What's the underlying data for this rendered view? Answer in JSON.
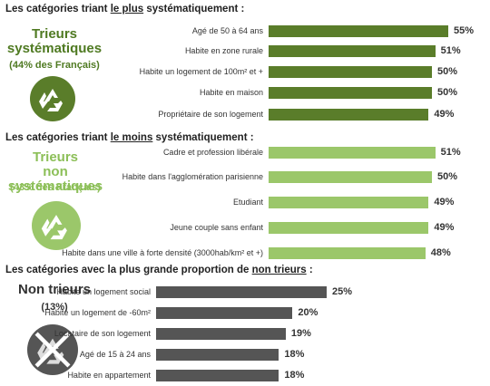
{
  "colors": {
    "dark_green": "#5a7d2a",
    "light_green": "#9bc76a",
    "dark_gray": "#555555",
    "text_dark_green": "#4f7a22",
    "text_light_green": "#8cbf58"
  },
  "sections": [
    {
      "title_prefix": "Les catégories triant ",
      "title_highlight": "le plus",
      "title_suffix": " systématiquement :",
      "group_name_line1": "Trieurs",
      "group_name_line2": "systématiques",
      "group_pct": "(44% des Français)",
      "icon": "recycle-icon",
      "color_key": "dark_green"
    },
    {
      "title_prefix": "Les catégories triant ",
      "title_highlight": "le moins",
      "title_suffix": " systématiquement :",
      "group_name_line1": "Trieurs",
      "group_name_line2": "non systématiques",
      "group_pct": "(43% des Français)",
      "icon": "recycle-icon",
      "color_key": "light_green"
    },
    {
      "title_prefix": "Les catégories avec la plus grande proportion de ",
      "title_highlight": "non trieurs",
      "title_suffix": " :",
      "group_name_line1": "Non trieurs",
      "group_name_line2": "",
      "group_pct": "(13%)",
      "icon": "crossed-recycle-icon",
      "color_key": "dark_gray"
    }
  ],
  "chart_data": [
    {
      "type": "bar",
      "orientation": "horizontal",
      "categories": [
        "Agé de 50 à 64 ans",
        "Habite en zone rurale",
        "Habite un logement de 100m² et +",
        "Habite en maison",
        "Propriétaire de son logement"
      ],
      "values": [
        55,
        51,
        50,
        50,
        49
      ],
      "value_labels": [
        "55%",
        "51%",
        "50%",
        "50%",
        "49%"
      ],
      "unit": "%"
    },
    {
      "type": "bar",
      "orientation": "horizontal",
      "categories": [
        "Cadre et profession libérale",
        "Habite dans l'agglomération parisienne",
        "Etudiant",
        "Jeune couple sans enfant",
        "Habite dans une ville à forte densité (3000hab/km² et +)"
      ],
      "values": [
        51,
        50,
        49,
        49,
        48
      ],
      "value_labels": [
        "51%",
        "50%",
        "49%",
        "49%",
        "48%"
      ],
      "unit": "%"
    },
    {
      "type": "bar",
      "orientation": "horizontal",
      "categories": [
        "Habite un logement social",
        "Habite un logement de -60m²",
        "Locataire de son logement",
        "Agé de 15 à 24 ans",
        "Habite en appartement"
      ],
      "values": [
        25,
        20,
        19,
        18,
        18
      ],
      "value_labels": [
        "25%",
        "20%",
        "19%",
        "18%",
        "18%"
      ],
      "unit": "%"
    }
  ]
}
